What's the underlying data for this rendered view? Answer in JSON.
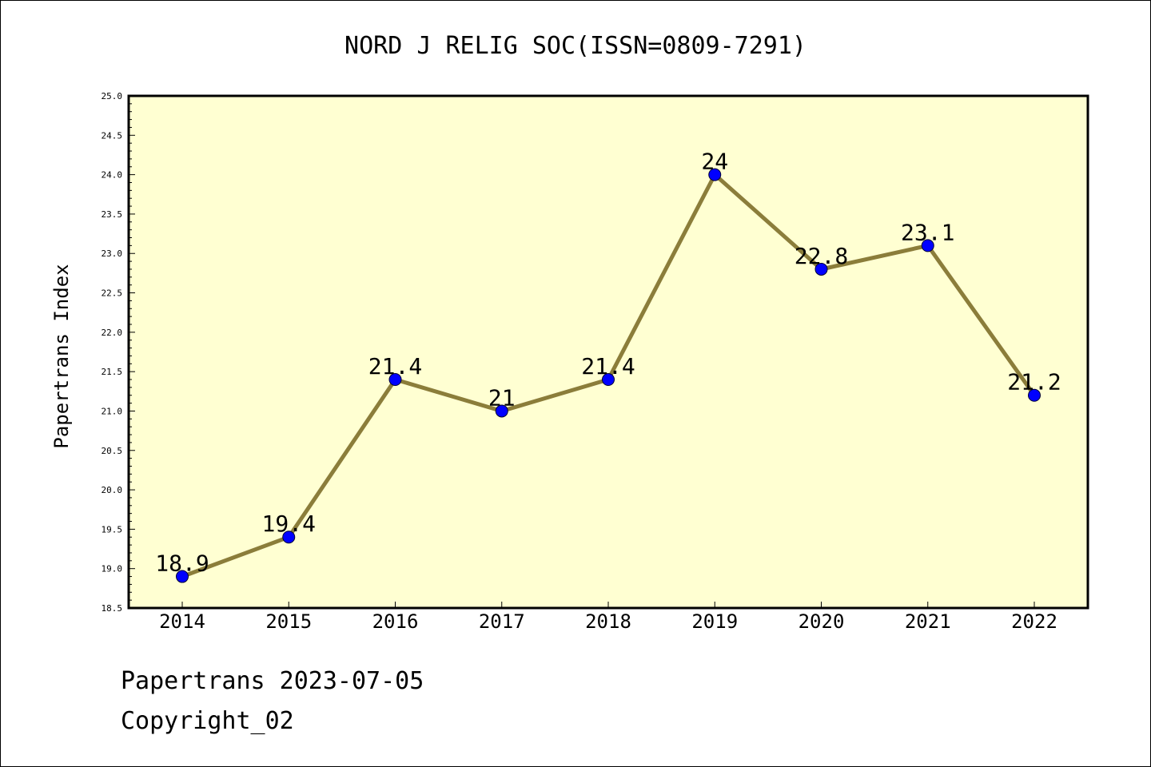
{
  "chart_data": {
    "type": "line",
    "title": "NORD J RELIG SOC(ISSN=0809-7291)",
    "xlabel": "",
    "ylabel": "Papertrans Index",
    "categories": [
      "2014",
      "2015",
      "2016",
      "2017",
      "2018",
      "2019",
      "2020",
      "2021",
      "2022"
    ],
    "values": [
      18.9,
      19.4,
      21.4,
      21.0,
      21.4,
      24.0,
      22.8,
      23.1,
      21.2
    ],
    "data_labels": [
      "18.9",
      "19.4",
      "21.4",
      "21",
      "21.4",
      "24",
      "22.8",
      "23.1",
      "21.2"
    ],
    "ylim": [
      18.5,
      25.0
    ],
    "y_ticks": [
      "18.5",
      "19.0",
      "19.5",
      "20.0",
      "20.5",
      "21.0",
      "21.5",
      "22.0",
      "22.5",
      "23.0",
      "23.5",
      "24.0",
      "24.5",
      "25.0"
    ],
    "grid": false,
    "legend": "none",
    "colors": {
      "plot_background": "#ffffd2",
      "line": "#8b7d3a",
      "marker": "#0000ff"
    }
  },
  "footer": {
    "stamp": "Papertrans 2023-07-05",
    "copyright": "Copyright_02"
  }
}
